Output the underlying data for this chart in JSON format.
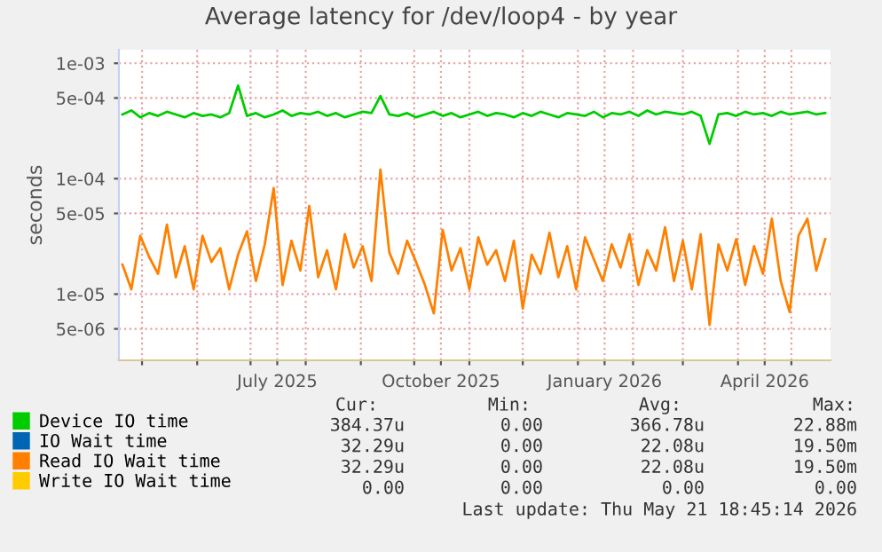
{
  "chart_data": {
    "type": "line",
    "title": "Average latency for /dev/loop4 - by year",
    "ylabel": "seconds",
    "x": [
      "2025-04-20",
      "2025-04-25",
      "2025-04-30",
      "2025-05-05",
      "2025-05-10",
      "2025-05-15",
      "2025-05-20",
      "2025-05-25",
      "2025-05-30",
      "2025-06-04",
      "2025-06-09",
      "2025-06-14",
      "2025-06-19",
      "2025-06-24",
      "2025-06-29",
      "2025-07-04",
      "2025-07-09",
      "2025-07-14",
      "2025-07-19",
      "2025-07-24",
      "2025-07-29",
      "2025-08-03",
      "2025-08-08",
      "2025-08-13",
      "2025-08-18",
      "2025-08-23",
      "2025-08-28",
      "2025-09-02",
      "2025-09-07",
      "2025-09-12",
      "2025-09-17",
      "2025-09-22",
      "2025-09-27",
      "2025-10-02",
      "2025-10-07",
      "2025-10-12",
      "2025-10-17",
      "2025-10-22",
      "2025-10-27",
      "2025-11-01",
      "2025-11-06",
      "2025-11-11",
      "2025-11-16",
      "2025-11-21",
      "2025-11-26",
      "2025-12-01",
      "2025-12-06",
      "2025-12-11",
      "2025-12-16",
      "2025-12-21",
      "2025-12-26",
      "2025-12-31",
      "2026-01-05",
      "2026-01-10",
      "2026-01-15",
      "2026-01-20",
      "2026-01-25",
      "2026-01-30",
      "2026-02-04",
      "2026-02-09",
      "2026-02-14",
      "2026-02-19",
      "2026-02-24",
      "2026-03-01",
      "2026-03-06",
      "2026-03-11",
      "2026-03-16",
      "2026-03-21",
      "2026-03-26",
      "2026-03-31",
      "2026-04-05",
      "2026-04-10",
      "2026-04-15",
      "2026-04-20",
      "2026-04-25",
      "2026-04-30",
      "2026-05-05",
      "2026-05-10",
      "2026-05-15",
      "2026-05-20"
    ],
    "series": [
      {
        "name": "Device IO time",
        "color": "#00cc00",
        "values": [
          0.00036,
          0.00039,
          0.00034,
          0.00037,
          0.00035,
          0.00038,
          0.00036,
          0.00034,
          0.00037,
          0.00035,
          0.00036,
          0.00034,
          0.00037,
          0.00064,
          0.00035,
          0.00037,
          0.00034,
          0.00036,
          0.00039,
          0.00035,
          0.00037,
          0.00036,
          0.00038,
          0.00035,
          0.00037,
          0.00034,
          0.00036,
          0.00038,
          0.00037,
          0.00052,
          0.00036,
          0.00035,
          0.00037,
          0.00034,
          0.00036,
          0.00038,
          0.00035,
          0.00037,
          0.00034,
          0.00036,
          0.00038,
          0.00035,
          0.00037,
          0.00036,
          0.00034,
          0.00037,
          0.00035,
          0.00038,
          0.00036,
          0.00034,
          0.00037,
          0.00036,
          0.00035,
          0.00038,
          0.00034,
          0.00037,
          0.00036,
          0.00038,
          0.00035,
          0.00039,
          0.00036,
          0.00038,
          0.00037,
          0.00036,
          0.00038,
          0.00035,
          0.0002,
          0.00036,
          0.00037,
          0.00035,
          0.00038,
          0.00036,
          0.00037,
          0.00035,
          0.00038,
          0.00036,
          0.00037,
          0.00038,
          0.00036,
          0.00037
        ]
      },
      {
        "name": "IO Wait time",
        "color": "#0066b3",
        "values": [
          null,
          null,
          null,
          null,
          null,
          null,
          null,
          null,
          null,
          null,
          null,
          null,
          null,
          null,
          null,
          null,
          null,
          null,
          null,
          null,
          null,
          null,
          null,
          null,
          null,
          null,
          null,
          null,
          null,
          null,
          null,
          null,
          null,
          null,
          null,
          null,
          null,
          null,
          null,
          null,
          null,
          null,
          null,
          null,
          null,
          null,
          null,
          null,
          null,
          null,
          null,
          null,
          null,
          null,
          null,
          null,
          null,
          null,
          null,
          null,
          null,
          null,
          null,
          null,
          null,
          null,
          null,
          null,
          null,
          null,
          null,
          null,
          null,
          null,
          null,
          null,
          null,
          null,
          null,
          null
        ]
      },
      {
        "name": "Read IO Wait time",
        "color": "#ff8000",
        "values": [
          1.8e-05,
          1.1e-05,
          3.2e-05,
          2.1e-05,
          1.5e-05,
          4e-05,
          1.4e-05,
          2.6e-05,
          1.1e-05,
          3.2e-05,
          1.9e-05,
          2.5e-05,
          1.1e-05,
          2.2e-05,
          3.5e-05,
          1.3e-05,
          2.7e-05,
          8.3e-05,
          1.2e-05,
          2.9e-05,
          1.6e-05,
          5.8e-05,
          1.4e-05,
          2.4e-05,
          1.1e-05,
          3.3e-05,
          1.7e-05,
          2.6e-05,
          1.3e-05,
          0.00012,
          2.3e-05,
          1.5e-05,
          2.9e-05,
          1.9e-05,
          1.2e-05,
          6.8e-06,
          3.6e-05,
          1.6e-05,
          2.5e-05,
          1.1e-05,
          3.1e-05,
          1.8e-05,
          2.4e-05,
          1.3e-05,
          2.9e-05,
          7.5e-06,
          2.2e-05,
          1.5e-05,
          3.4e-05,
          1.4e-05,
          2.6e-05,
          1.1e-05,
          3.1e-05,
          2e-05,
          1.3e-05,
          2.7e-05,
          1.7e-05,
          3.3e-05,
          1.2e-05,
          2.4e-05,
          1.6e-05,
          3.8e-05,
          1.3e-05,
          2.9e-05,
          1.1e-05,
          3.3e-05,
          5.4e-06,
          2.7e-05,
          1.6e-05,
          3e-05,
          1.2e-05,
          2.6e-05,
          1.5e-05,
          4.5e-05,
          1.3e-05,
          7e-06,
          3.2e-05,
          4.5e-05,
          1.6e-05,
          3e-05
        ]
      },
      {
        "name": "Write IO Wait time",
        "color": "#ffcc00",
        "values": [
          null,
          null,
          null,
          null,
          null,
          null,
          null,
          null,
          null,
          null,
          null,
          null,
          null,
          null,
          null,
          null,
          null,
          null,
          null,
          null,
          null,
          null,
          null,
          null,
          null,
          null,
          null,
          null,
          null,
          null,
          null,
          null,
          null,
          null,
          null,
          null,
          null,
          null,
          null,
          null,
          null,
          null,
          null,
          null,
          null,
          null,
          null,
          null,
          null,
          null,
          null,
          null,
          null,
          null,
          null,
          null,
          null,
          null,
          null,
          null,
          null,
          null,
          null,
          null,
          null,
          null,
          null,
          null,
          null,
          null,
          null,
          null,
          null,
          null,
          null,
          null,
          null,
          null,
          null,
          null
        ]
      }
    ],
    "xlim": [
      "2025-04-18",
      "2026-05-23"
    ],
    "xticks": [
      {
        "value": "2025-05-01",
        "label": null
      },
      {
        "value": "2025-06-01",
        "label": null
      },
      {
        "value": "2025-07-01",
        "label": null
      },
      {
        "value": "2025-07-16",
        "label": "July 2025"
      },
      {
        "value": "2025-08-01",
        "label": null
      },
      {
        "value": "2025-09-01",
        "label": null
      },
      {
        "value": "2025-10-01",
        "label": null
      },
      {
        "value": "2025-10-16",
        "label": "October 2025"
      },
      {
        "value": "2025-11-01",
        "label": null
      },
      {
        "value": "2025-12-01",
        "label": null
      },
      {
        "value": "2026-01-01",
        "label": null
      },
      {
        "value": "2026-01-16",
        "label": "January 2026"
      },
      {
        "value": "2026-02-01",
        "label": null
      },
      {
        "value": "2026-03-01",
        "label": null
      },
      {
        "value": "2026-04-01",
        "label": null
      },
      {
        "value": "2026-04-16",
        "label": "April 2026"
      },
      {
        "value": "2026-05-01",
        "label": null
      }
    ],
    "log": "y",
    "ylim": [
      2.67e-06,
      0.00131
    ],
    "yticks": [
      {
        "value": 5e-06,
        "label": "5e-06"
      },
      {
        "value": 1e-05,
        "label": "1e-05"
      },
      {
        "value": 5e-05,
        "label": "5e-05"
      },
      {
        "value": 0.0001,
        "label": "1e-04"
      },
      {
        "value": 0.0005,
        "label": "5e-04"
      },
      {
        "value": 0.001,
        "label": "1e-03"
      }
    ],
    "grid": true,
    "legend": "bottom left",
    "annotations": [
      "Cur:",
      "Min:",
      "Avg:",
      "Max:",
      "384.37u",
      "0.00",
      "366.78u",
      "22.88m",
      "32.29u",
      "0.00",
      "22.08u",
      "19.50m",
      "32.29u",
      "0.00",
      "22.08u",
      "19.50m",
      "0.00",
      "0.00",
      "0.00",
      "0.00",
      "Last update: Thu May 21 18:45:14 2026"
    ]
  }
}
